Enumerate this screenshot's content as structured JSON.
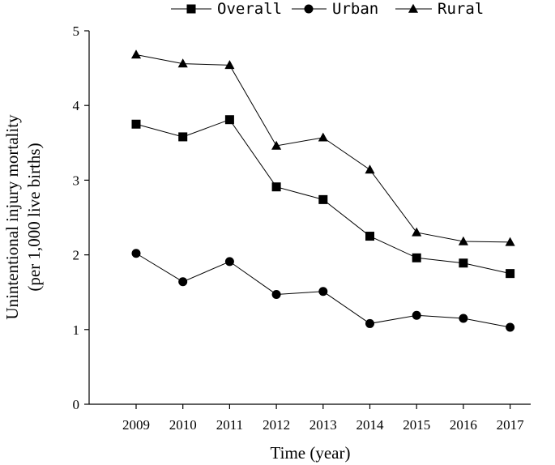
{
  "chart_data": {
    "type": "line",
    "categories": [
      "2009",
      "2010",
      "2011",
      "2012",
      "2013",
      "2014",
      "2015",
      "2016",
      "2017"
    ],
    "series": [
      {
        "name": "Overall",
        "marker": "square",
        "values": [
          3.75,
          3.58,
          3.81,
          2.91,
          2.74,
          2.25,
          1.96,
          1.89,
          1.75
        ]
      },
      {
        "name": "Urban",
        "marker": "circle",
        "values": [
          2.02,
          1.64,
          1.91,
          1.47,
          1.51,
          1.08,
          1.19,
          1.15,
          1.03
        ]
      },
      {
        "name": "Rural",
        "marker": "triangle",
        "values": [
          4.68,
          4.56,
          4.54,
          3.46,
          3.57,
          3.14,
          2.3,
          2.18,
          2.17
        ]
      }
    ],
    "xlabel": "Time (year)",
    "ylabel_line1": "Unintentional injury mortality",
    "ylabel_line2": "(per 1,000 live births)",
    "ylim": [
      0,
      5
    ],
    "yticks": [
      "0",
      "1",
      "2",
      "3",
      "4",
      "5"
    ],
    "grid": false,
    "legend_position": "top"
  }
}
